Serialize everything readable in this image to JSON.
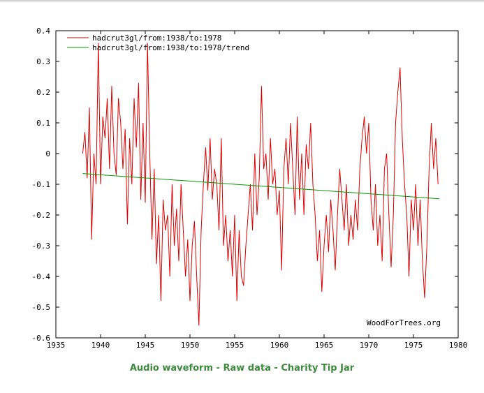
{
  "chart_data": {
    "type": "line",
    "xlim": [
      1935,
      1980
    ],
    "ylim": [
      -0.6,
      0.4
    ],
    "x_ticks": [
      "1935",
      "1940",
      "1945",
      "1950",
      "1955",
      "1960",
      "1965",
      "1970",
      "1975",
      "1980"
    ],
    "y_ticks": [
      "0.4",
      "0.3",
      "0.2",
      "0.1",
      "0",
      "-0.1",
      "-0.2",
      "-0.3",
      "-0.4",
      "-0.5",
      "-0.6"
    ],
    "grid": false,
    "legend_position": "top-left",
    "watermark": "WoodForTrees.org",
    "series": [
      {
        "name": "hadcrut3gl/from:1938/to:1978",
        "color": "#dd0000",
        "x": [
          1938.0,
          1938.25,
          1938.5,
          1938.75,
          1939.0,
          1939.25,
          1939.5,
          1939.75,
          1940.0,
          1940.25,
          1940.5,
          1940.75,
          1941.0,
          1941.25,
          1941.5,
          1941.75,
          1942.0,
          1942.25,
          1942.5,
          1942.75,
          1943.0,
          1943.25,
          1943.5,
          1943.75,
          1944.0,
          1944.25,
          1944.5,
          1944.75,
          1945.0,
          1945.25,
          1945.5,
          1945.75,
          1946.0,
          1946.25,
          1946.5,
          1946.75,
          1947.0,
          1947.25,
          1947.5,
          1947.75,
          1948.0,
          1948.25,
          1948.5,
          1948.75,
          1949.0,
          1949.25,
          1949.5,
          1949.75,
          1950.0,
          1950.25,
          1950.5,
          1950.75,
          1951.0,
          1951.25,
          1951.5,
          1951.75,
          1952.0,
          1952.25,
          1952.5,
          1952.75,
          1953.0,
          1953.25,
          1953.5,
          1953.75,
          1954.0,
          1954.25,
          1954.5,
          1954.75,
          1955.0,
          1955.25,
          1955.5,
          1955.75,
          1956.0,
          1956.25,
          1956.5,
          1956.75,
          1957.0,
          1957.25,
          1957.5,
          1957.75,
          1958.0,
          1958.25,
          1958.5,
          1958.75,
          1959.0,
          1959.25,
          1959.5,
          1959.75,
          1960.0,
          1960.25,
          1960.5,
          1960.75,
          1961.0,
          1961.25,
          1961.5,
          1961.75,
          1962.0,
          1962.25,
          1962.5,
          1962.75,
          1963.0,
          1963.25,
          1963.5,
          1963.75,
          1964.0,
          1964.25,
          1964.5,
          1964.75,
          1965.0,
          1965.25,
          1965.5,
          1965.75,
          1966.0,
          1966.25,
          1966.5,
          1966.75,
          1967.0,
          1967.25,
          1967.5,
          1967.75,
          1968.0,
          1968.25,
          1968.5,
          1968.75,
          1969.0,
          1969.25,
          1969.5,
          1969.75,
          1970.0,
          1970.25,
          1970.5,
          1970.75,
          1971.0,
          1971.25,
          1971.5,
          1971.75,
          1972.0,
          1972.25,
          1972.5,
          1972.75,
          1973.0,
          1973.25,
          1973.5,
          1973.75,
          1974.0,
          1974.25,
          1974.5,
          1974.75,
          1975.0,
          1975.25,
          1975.5,
          1975.75,
          1976.0,
          1976.25,
          1976.5,
          1976.75,
          1977.0,
          1977.25,
          1977.5,
          1977.75
        ],
        "y": [
          0.0,
          0.07,
          -0.08,
          0.15,
          -0.28,
          0.0,
          -0.1,
          0.36,
          -0.1,
          0.12,
          0.05,
          0.18,
          -0.05,
          0.22,
          0.0,
          -0.07,
          0.18,
          0.1,
          -0.05,
          0.08,
          -0.23,
          0.05,
          -0.1,
          0.18,
          0.02,
          0.23,
          -0.15,
          0.1,
          -0.16,
          0.36,
          0.0,
          -0.28,
          -0.05,
          -0.36,
          -0.2,
          -0.48,
          -0.15,
          -0.25,
          -0.2,
          -0.4,
          -0.1,
          -0.3,
          -0.18,
          -0.35,
          -0.1,
          -0.25,
          -0.4,
          -0.28,
          -0.48,
          -0.3,
          -0.22,
          -0.4,
          -0.56,
          -0.25,
          -0.1,
          0.02,
          -0.12,
          0.05,
          -0.15,
          -0.05,
          -0.1,
          -0.25,
          0.05,
          -0.3,
          -0.2,
          -0.35,
          -0.25,
          -0.4,
          -0.2,
          -0.48,
          -0.25,
          -0.4,
          -0.43,
          -0.3,
          -0.2,
          -0.1,
          -0.25,
          0.0,
          -0.2,
          -0.08,
          0.22,
          -0.05,
          0.0,
          -0.15,
          0.05,
          -0.1,
          -0.05,
          -0.2,
          -0.12,
          -0.38,
          -0.05,
          0.05,
          -0.1,
          0.1,
          -0.05,
          -0.2,
          0.12,
          -0.15,
          0.0,
          -0.2,
          0.03,
          -0.05,
          0.1,
          -0.1,
          -0.2,
          -0.35,
          -0.25,
          -0.45,
          -0.3,
          -0.2,
          -0.32,
          -0.15,
          -0.25,
          -0.38,
          -0.2,
          -0.05,
          -0.15,
          -0.25,
          -0.1,
          -0.3,
          -0.2,
          -0.28,
          -0.15,
          -0.25,
          -0.05,
          0.05,
          0.12,
          0.0,
          0.1,
          -0.15,
          -0.25,
          -0.1,
          -0.3,
          -0.2,
          -0.35,
          -0.05,
          0.0,
          -0.2,
          -0.37,
          -0.2,
          0.1,
          0.2,
          0.28,
          0.05,
          -0.1,
          -0.2,
          -0.4,
          -0.15,
          -0.25,
          -0.1,
          -0.3,
          -0.15,
          -0.35,
          -0.47,
          -0.3,
          -0.05,
          0.1,
          -0.05,
          0.05,
          -0.1
        ]
      },
      {
        "name": "hadcrut3gl/from:1938/to:1978/trend",
        "color": "#009900",
        "x": [
          1938.0,
          1977.9
        ],
        "y": [
          -0.065,
          -0.147
        ]
      }
    ]
  },
  "footer": {
    "link1": "Audio waveform",
    "sep1": " - ",
    "link2": "Raw data",
    "sep2": " - ",
    "link3": "Charity Tip Jar"
  }
}
